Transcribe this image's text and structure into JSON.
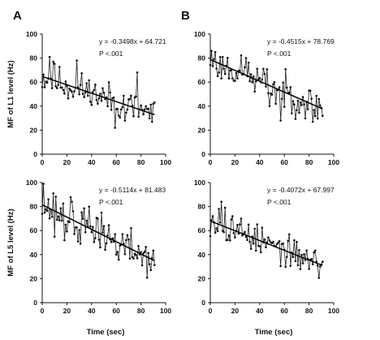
{
  "figure": {
    "row_labels": [
      "MF of L1 level (Hz)",
      "MF of L5 level (Hz)"
    ],
    "col_labels": [
      "A",
      "B"
    ],
    "xlabel": "Time (sec)"
  },
  "chart_data": [
    {
      "panel": "A",
      "row": 0,
      "col": 0,
      "type": "line",
      "ylabel": "MF of L1 level (Hz)",
      "xlabel": "",
      "xlim": [
        0,
        100
      ],
      "ylim": [
        0,
        100
      ],
      "xticks": [
        0,
        20,
        40,
        60,
        80,
        100
      ],
      "yticks": [
        0,
        20,
        40,
        60,
        80,
        100
      ],
      "trend": {
        "slope": -0.3498,
        "intercept": 64.721,
        "x_range": [
          0,
          91
        ]
      },
      "equation": "y = -0.3498x + 64.721",
      "p_text": "P <.001",
      "seed": 11,
      "noise": 7,
      "spikes": [
        [
          6,
          81
        ],
        [
          9,
          77
        ],
        [
          28,
          78
        ],
        [
          40,
          41
        ],
        [
          59,
          22
        ],
        [
          67,
          28
        ],
        [
          76,
          48
        ],
        [
          89,
          27
        ],
        [
          77,
          68
        ]
      ]
    },
    {
      "panel": "B",
      "row": 0,
      "col": 1,
      "type": "line",
      "ylabel": "",
      "xlabel": "",
      "xlim": [
        0,
        100
      ],
      "ylim": [
        0,
        100
      ],
      "xticks": [
        0,
        20,
        40,
        60,
        80,
        100
      ],
      "yticks": [
        0,
        20,
        40,
        60,
        80,
        100
      ],
      "trend": {
        "slope": -0.4515,
        "intercept": 78.769,
        "x_range": [
          0,
          91
        ]
      },
      "equation": "y = -0.4515x + 78.769",
      "p_text": "P <.001",
      "seed": 23,
      "noise": 7,
      "spikes": [
        [
          4,
          85
        ],
        [
          7,
          68
        ],
        [
          29,
          80
        ],
        [
          48,
          40
        ],
        [
          53,
          42
        ],
        [
          57,
          28
        ],
        [
          66,
          34
        ],
        [
          83,
          27
        ],
        [
          88,
          46
        ]
      ]
    },
    {
      "panel": "A",
      "row": 1,
      "col": 0,
      "type": "line",
      "ylabel": "MF of L5 level (Hz)",
      "xlabel": "Time (sec)",
      "xlim": [
        0,
        100
      ],
      "ylim": [
        0,
        100
      ],
      "xticks": [
        0,
        20,
        40,
        60,
        80,
        100
      ],
      "yticks": [
        0,
        20,
        40,
        60,
        80,
        100
      ],
      "trend": {
        "slope": -0.5114,
        "intercept": 81.483,
        "x_range": [
          0,
          91
        ]
      },
      "equation": "y = -0.5114x + 81.483",
      "p_text": "P <.001",
      "seed": 37,
      "noise": 8,
      "spikes": [
        [
          1,
          99
        ],
        [
          5,
          86
        ],
        [
          10,
          55
        ],
        [
          18,
          52
        ],
        [
          24,
          84
        ],
        [
          29,
          51
        ],
        [
          45,
          70
        ],
        [
          48,
          75
        ],
        [
          60,
          40
        ],
        [
          73,
          38
        ]
      ]
    },
    {
      "panel": "B",
      "row": 1,
      "col": 1,
      "type": "line",
      "ylabel": "",
      "xlabel": "Time (sec)",
      "xlim": [
        0,
        100
      ],
      "ylim": [
        0,
        100
      ],
      "xticks": [
        0,
        20,
        40,
        60,
        80,
        100
      ],
      "yticks": [
        0,
        20,
        40,
        60,
        80,
        100
      ],
      "trend": {
        "slope": -0.4072,
        "intercept": 67.997,
        "x_range": [
          0,
          91
        ]
      },
      "equation": "y = -0.4072x + 67.997",
      "p_text": "P <.001",
      "seed": 53,
      "noise": 6,
      "spikes": [
        [
          2,
          72
        ],
        [
          7,
          78
        ],
        [
          9,
          84
        ],
        [
          12,
          79
        ],
        [
          18,
          72
        ],
        [
          25,
          70
        ],
        [
          31,
          65
        ],
        [
          41,
          42
        ],
        [
          67,
          38
        ],
        [
          83,
          32
        ]
      ]
    }
  ]
}
